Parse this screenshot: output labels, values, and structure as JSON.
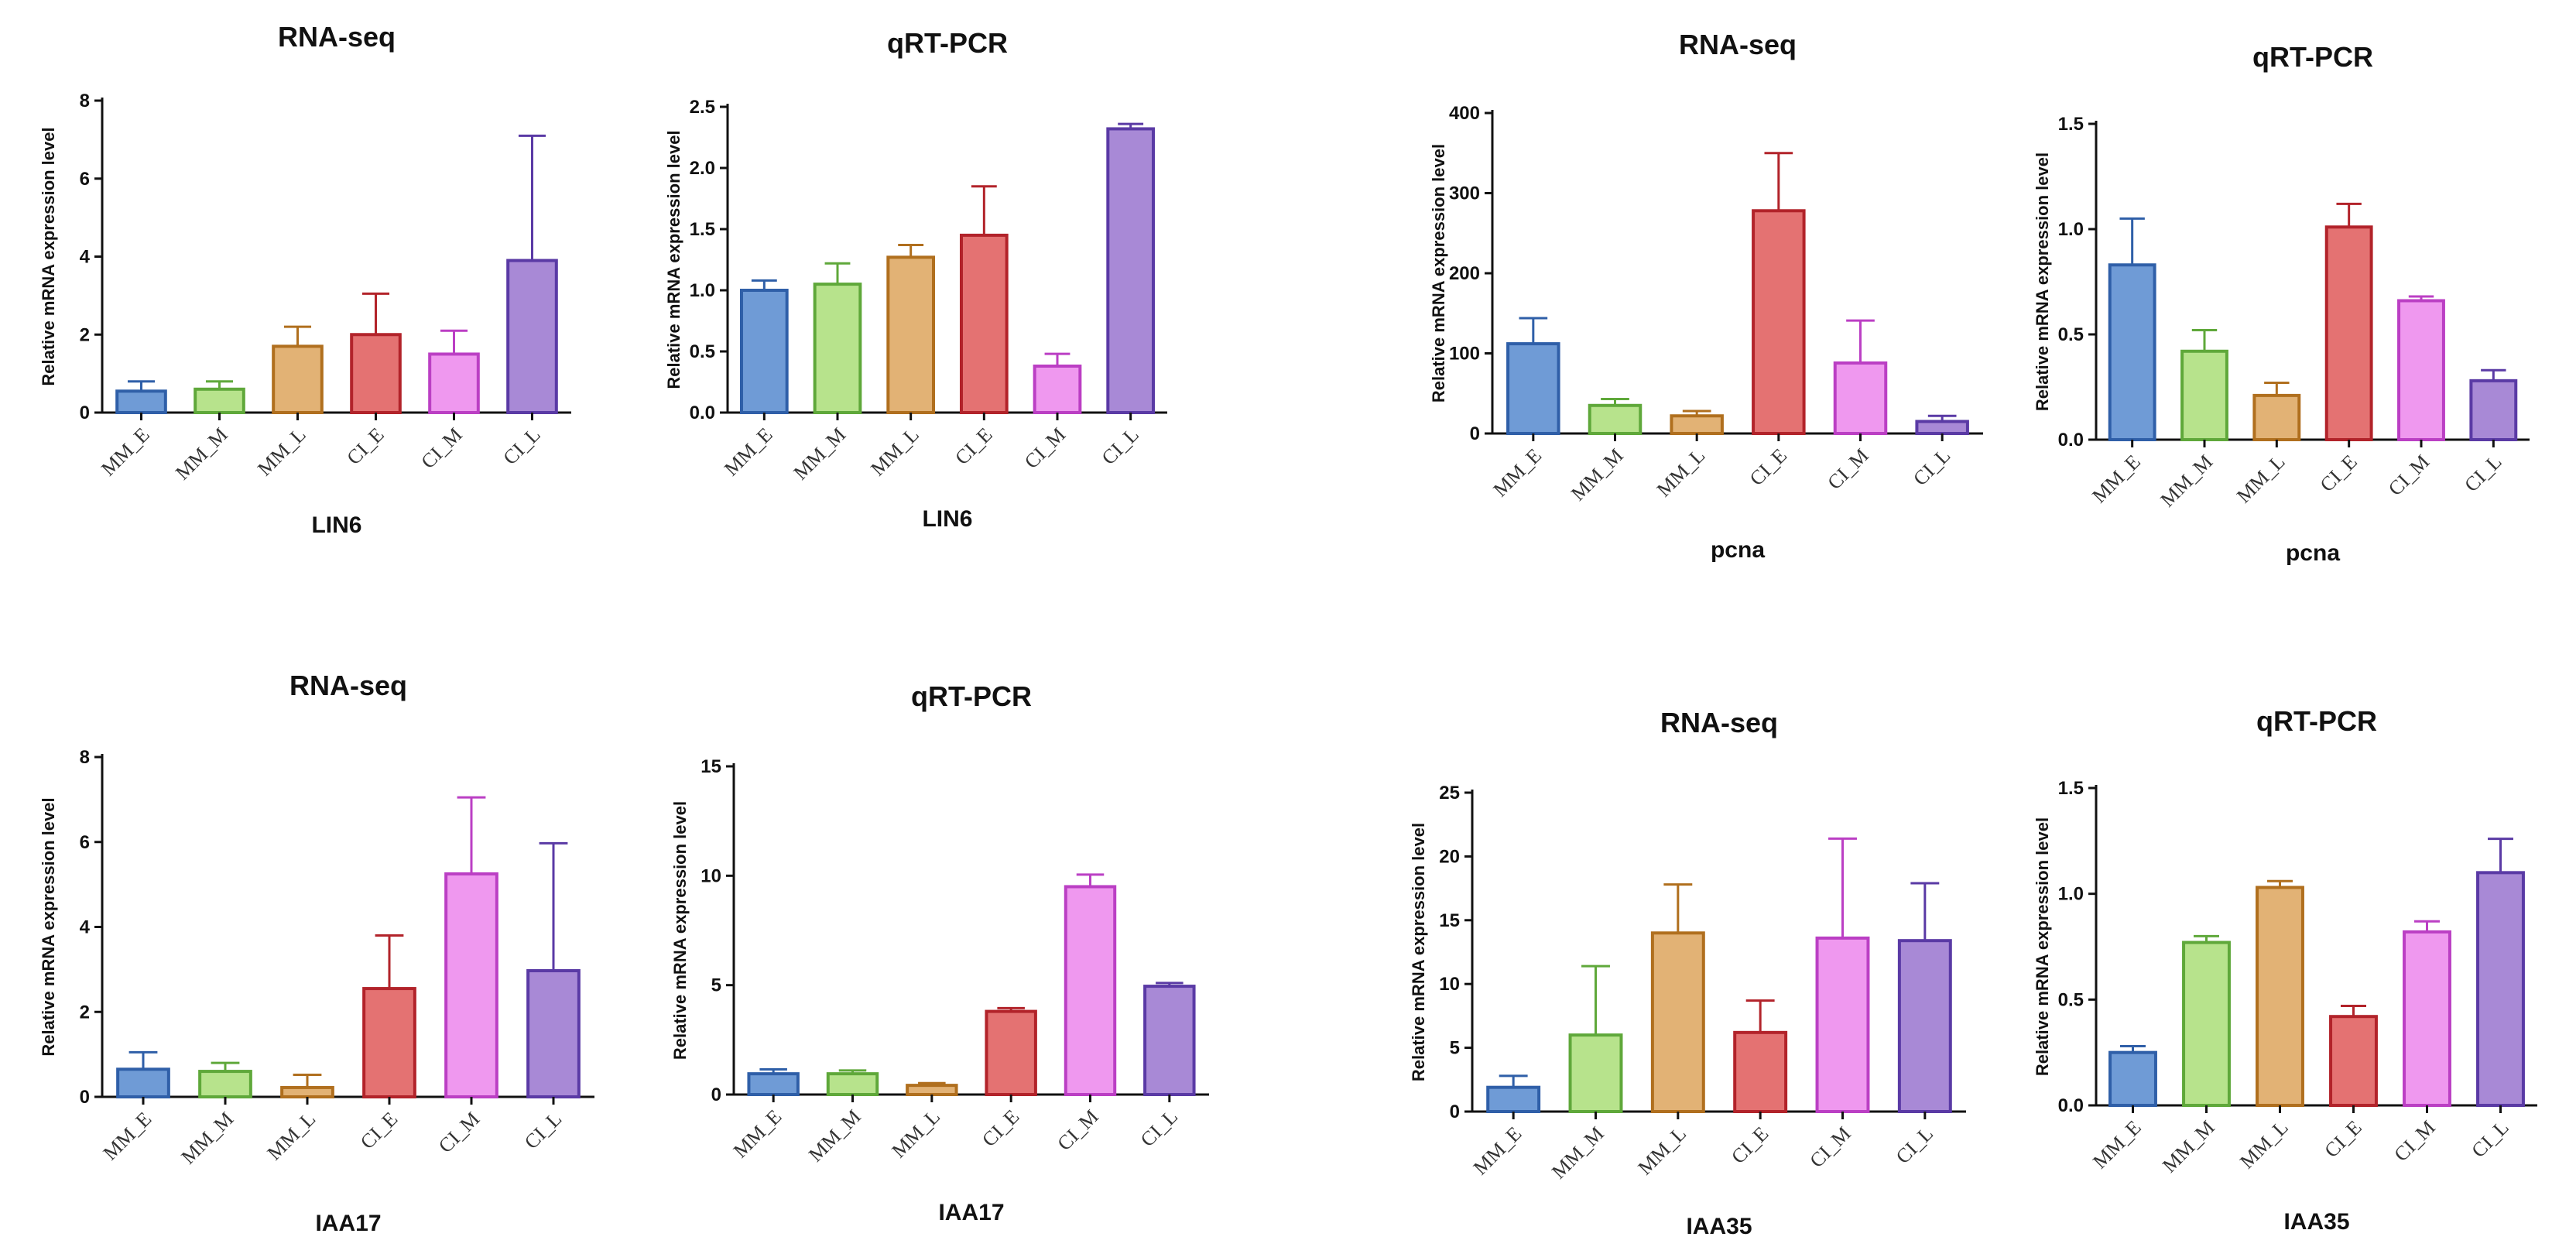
{
  "colors": {
    "MM_E": {
      "fill": "#6f9bd6",
      "stroke": "#2f5fa8"
    },
    "MM_M": {
      "fill": "#b7e38c",
      "stroke": "#5fa83a"
    },
    "MM_L": {
      "fill": "#e2b275",
      "stroke": "#b06f1e"
    },
    "CI_E": {
      "fill": "#e47272",
      "stroke": "#b2232a"
    },
    "CI_M": {
      "fill": "#ef98ef",
      "stroke": "#bb3fc4"
    },
    "CI_L": {
      "fill": "#a889d6",
      "stroke": "#5a3aa5"
    }
  },
  "ylabel": "Relative mRNA expression level",
  "chart_data": [
    {
      "type": "bar",
      "title": "RNA-seq",
      "xlabel": "LIN6",
      "ylabel": "Relative mRNA expression level",
      "categories": [
        "MM_E",
        "MM_M",
        "MM_L",
        "CI_E",
        "CI_M",
        "CI_L"
      ],
      "values": [
        0.55,
        0.6,
        1.7,
        2.0,
        1.5,
        3.9
      ],
      "errors": [
        0.25,
        0.2,
        0.5,
        1.05,
        0.6,
        3.2
      ],
      "ylim": [
        0,
        8
      ],
      "yticks": [
        "0",
        "2",
        "4",
        "6",
        "8"
      ]
    },
    {
      "type": "bar",
      "title": "qRT-PCR",
      "xlabel": "LIN6",
      "ylabel": "Relative mRNA expression level",
      "categories": [
        "MM_E",
        "MM_M",
        "MM_L",
        "CI_E",
        "CI_M",
        "CI_L"
      ],
      "values": [
        1.0,
        1.05,
        1.27,
        1.45,
        0.38,
        2.32
      ],
      "errors": [
        0.08,
        0.17,
        0.1,
        0.4,
        0.1,
        0.04
      ],
      "ylim": [
        0,
        2.5
      ],
      "yticks": [
        "0.0",
        "0.5",
        "1.0",
        "1.5",
        "2.0",
        "2.5"
      ]
    },
    {
      "type": "bar",
      "title": "RNA-seq",
      "xlabel": "pcna",
      "ylabel": "Relative mRNA expression level",
      "categories": [
        "MM_E",
        "MM_M",
        "MM_L",
        "CI_E",
        "CI_M",
        "CI_L"
      ],
      "values": [
        112,
        35,
        22,
        278,
        88,
        15
      ],
      "errors": [
        32,
        8,
        6,
        72,
        53,
        7
      ],
      "ylim": [
        0,
        400
      ],
      "yticks": [
        "0",
        "100",
        "200",
        "300",
        "400"
      ]
    },
    {
      "type": "bar",
      "title": "qRT-PCR",
      "xlabel": "pcna",
      "ylabel": "Relative mRNA expression level",
      "categories": [
        "MM_E",
        "MM_M",
        "MM_L",
        "CI_E",
        "CI_M",
        "CI_L"
      ],
      "values": [
        0.83,
        0.42,
        0.21,
        1.01,
        0.66,
        0.28
      ],
      "errors": [
        0.22,
        0.1,
        0.06,
        0.11,
        0.02,
        0.05
      ],
      "ylim": [
        0,
        1.5
      ],
      "yticks": [
        "0.0",
        "0.5",
        "1.0",
        "1.5"
      ]
    },
    {
      "type": "bar",
      "title": "RNA-seq",
      "xlabel": "IAA17",
      "ylabel": "Relative mRNA expression level",
      "categories": [
        "MM_E",
        "MM_M",
        "MM_L",
        "CI_E",
        "CI_M",
        "CI_L"
      ],
      "values": [
        0.65,
        0.6,
        0.22,
        2.55,
        5.25,
        2.97
      ],
      "errors": [
        0.4,
        0.2,
        0.3,
        1.25,
        1.8,
        3.0
      ],
      "ylim": [
        0,
        8
      ],
      "yticks": [
        "0",
        "2",
        "4",
        "6",
        "8"
      ]
    },
    {
      "type": "bar",
      "title": "qRT-PCR",
      "xlabel": "IAA17",
      "ylabel": "Relative mRNA expression level",
      "categories": [
        "MM_E",
        "MM_M",
        "MM_L",
        "CI_E",
        "CI_M",
        "CI_L"
      ],
      "values": [
        0.95,
        0.95,
        0.42,
        3.8,
        9.5,
        4.95
      ],
      "errors": [
        0.2,
        0.15,
        0.1,
        0.15,
        0.55,
        0.15
      ],
      "ylim": [
        0,
        15
      ],
      "yticks": [
        "0",
        "5",
        "10",
        "15"
      ]
    },
    {
      "type": "bar",
      "title": "RNA-seq",
      "xlabel": "IAA35",
      "ylabel": "Relative mRNA expression level",
      "categories": [
        "MM_E",
        "MM_M",
        "MM_L",
        "CI_E",
        "CI_M",
        "CI_L"
      ],
      "values": [
        1.9,
        6.0,
        14.0,
        6.2,
        13.6,
        13.4
      ],
      "errors": [
        0.9,
        5.4,
        3.8,
        2.5,
        7.8,
        4.5
      ],
      "ylim": [
        0,
        25
      ],
      "yticks": [
        "0",
        "5",
        "10",
        "15",
        "20",
        "25"
      ]
    },
    {
      "type": "bar",
      "title": "qRT-PCR",
      "xlabel": "IAA35",
      "ylabel": "Relative mRNA expression level",
      "categories": [
        "MM_E",
        "MM_M",
        "MM_L",
        "CI_E",
        "CI_M",
        "CI_L"
      ],
      "values": [
        0.25,
        0.77,
        1.03,
        0.42,
        0.82,
        1.1
      ],
      "errors": [
        0.03,
        0.03,
        0.03,
        0.05,
        0.05,
        0.16
      ],
      "ylim": [
        0,
        1.5
      ],
      "yticks": [
        "0.0",
        "0.5",
        "1.0",
        "1.5"
      ]
    }
  ]
}
